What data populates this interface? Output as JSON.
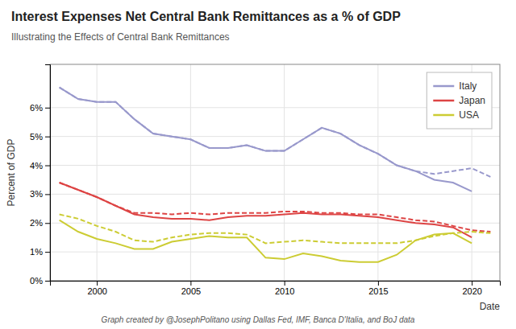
{
  "chart_data": {
    "type": "line",
    "title": "Interest Expenses Net Central Bank Remittances as a % of GDP",
    "subtitle": "Illustrating the Effects of Central Bank Remittances",
    "xlabel": "Date",
    "ylabel": "Percent of GDP",
    "footnote": "Graph created by @JosephPolitano using Dallas Fed, IMF, Banca D'Italia, and BoJ data",
    "x": [
      1998,
      1999,
      2000,
      2001,
      2002,
      2003,
      2004,
      2005,
      2006,
      2007,
      2008,
      2009,
      2010,
      2011,
      2012,
      2013,
      2014,
      2015,
      2016,
      2017,
      2018,
      2019,
      2020,
      2021
    ],
    "series": [
      {
        "name": "Italy",
        "color": "#9999cc",
        "line_style": "solid",
        "values": [
          6.7,
          6.3,
          6.2,
          6.2,
          5.6,
          5.1,
          5.0,
          4.9,
          4.6,
          4.6,
          4.7,
          4.5,
          4.5,
          4.9,
          5.3,
          5.1,
          4.7,
          4.4,
          4.0,
          3.8,
          3.5,
          3.4,
          3.1,
          null
        ]
      },
      {
        "color": "#9999cc",
        "line_style": "dashed",
        "values": [
          6.7,
          6.3,
          6.2,
          6.2,
          5.6,
          5.1,
          5.0,
          4.9,
          4.6,
          4.6,
          4.7,
          4.5,
          4.5,
          4.9,
          5.3,
          5.1,
          4.7,
          4.4,
          4.0,
          3.8,
          3.7,
          3.8,
          3.9,
          3.6
        ]
      },
      {
        "name": "Japan",
        "color": "#dd4444",
        "line_style": "solid",
        "values": [
          3.4,
          3.15,
          2.9,
          2.6,
          2.3,
          2.2,
          2.15,
          2.15,
          2.1,
          2.2,
          2.25,
          2.25,
          2.3,
          2.35,
          2.3,
          2.3,
          2.25,
          2.2,
          2.1,
          2.0,
          1.95,
          1.85,
          1.5,
          null
        ]
      },
      {
        "color": "#dd4444",
        "line_style": "dashed",
        "values": [
          3.4,
          3.15,
          2.9,
          2.6,
          2.35,
          2.35,
          2.3,
          2.35,
          2.3,
          2.35,
          2.35,
          2.35,
          2.4,
          2.4,
          2.35,
          2.35,
          2.3,
          2.3,
          2.2,
          2.1,
          2.05,
          1.9,
          1.75,
          1.7
        ]
      },
      {
        "name": "USA",
        "color": "#cccc33",
        "line_style": "solid",
        "values": [
          2.1,
          1.7,
          1.45,
          1.3,
          1.1,
          1.1,
          1.35,
          1.45,
          1.55,
          1.5,
          1.5,
          0.8,
          0.75,
          0.95,
          0.85,
          0.7,
          0.65,
          0.65,
          0.9,
          1.4,
          1.6,
          1.65,
          1.3,
          null
        ]
      },
      {
        "color": "#cccc33",
        "line_style": "dashed",
        "values": [
          2.3,
          2.15,
          1.9,
          1.7,
          1.4,
          1.35,
          1.5,
          1.6,
          1.65,
          1.65,
          1.6,
          1.3,
          1.35,
          1.4,
          1.35,
          1.3,
          1.3,
          1.3,
          1.3,
          1.4,
          1.55,
          1.65,
          1.7,
          1.65
        ]
      }
    ],
    "xlim": [
      1997.5,
      2021.5
    ],
    "xticks": [
      2000,
      2005,
      2010,
      2015,
      2020
    ],
    "ylim": [
      0,
      7.5
    ],
    "yticks": [
      {
        "value": 0,
        "label": "0%"
      },
      {
        "value": 1,
        "label": "1%"
      },
      {
        "value": 2,
        "label": "2%"
      },
      {
        "value": 3,
        "label": "3%"
      },
      {
        "value": 4,
        "label": "4%"
      },
      {
        "value": 5,
        "label": "5%"
      },
      {
        "value": 6,
        "label": "6%"
      }
    ],
    "grid": true,
    "legend": "upper right"
  }
}
